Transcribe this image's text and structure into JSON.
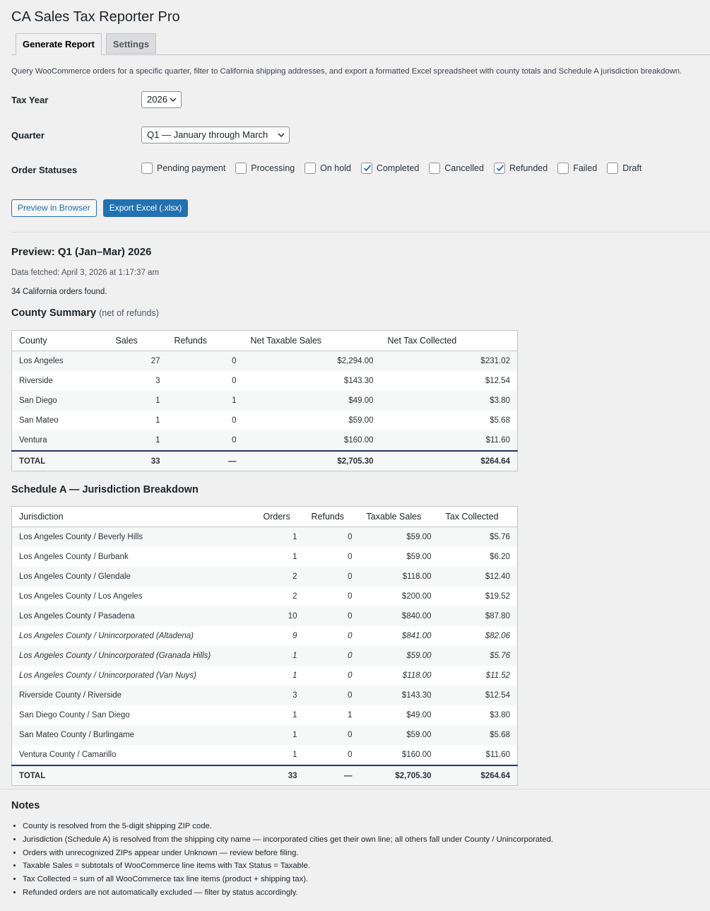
{
  "header": {
    "title": "CA Sales Tax Reporter Pro"
  },
  "tabs": [
    {
      "label": "Generate Report",
      "active": true
    },
    {
      "label": "Settings",
      "active": false
    }
  ],
  "description": "Query WooCommerce orders for a specific quarter, filter to California shipping addresses, and export a formatted Excel spreadsheet with county totals and Schedule A jurisdiction breakdown.",
  "form": {
    "tax_year": {
      "label": "Tax Year",
      "value": "2026"
    },
    "quarter": {
      "label": "Quarter",
      "value": "Q1 — January through March"
    },
    "order_statuses": {
      "label": "Order Statuses",
      "options": [
        {
          "label": "Pending payment",
          "checked": false
        },
        {
          "label": "Processing",
          "checked": false
        },
        {
          "label": "On hold",
          "checked": false
        },
        {
          "label": "Completed",
          "checked": true
        },
        {
          "label": "Cancelled",
          "checked": false
        },
        {
          "label": "Refunded",
          "checked": true
        },
        {
          "label": "Failed",
          "checked": false
        },
        {
          "label": "Draft",
          "checked": false
        }
      ]
    }
  },
  "buttons": [
    {
      "label": "Preview in Browser",
      "primary": false
    },
    {
      "label": "Export Excel (.xlsx)",
      "primary": true
    }
  ],
  "preview": {
    "heading": "Preview: Q1 (Jan–Mar) 2026",
    "fetched": "Data fetched: April 3, 2026 at 1:17:37 am",
    "count": "34 California orders found."
  },
  "county_summary": {
    "title": "County Summary",
    "note": "(net of refunds)",
    "columns": [
      "County",
      "Sales",
      "Refunds",
      "Net Taxable Sales",
      "Net Tax Collected"
    ],
    "rows": [
      [
        "Los Angeles",
        "27",
        "0",
        "$2,294.00",
        "$231.02"
      ],
      [
        "Riverside",
        "3",
        "0",
        "$143.30",
        "$12.54"
      ],
      [
        "San Diego",
        "1",
        "1",
        "$49.00",
        "$3.80"
      ],
      [
        "San Mateo",
        "1",
        "0",
        "$59.00",
        "$5.68"
      ],
      [
        "Ventura",
        "1",
        "0",
        "$160.00",
        "$11.60"
      ]
    ],
    "total": [
      "TOTAL",
      "33",
      "—",
      "$2,705.30",
      "$264.64"
    ]
  },
  "schedule_a": {
    "title": "Schedule A — Jurisdiction Breakdown",
    "columns": [
      "Jurisdiction",
      "Orders",
      "Refunds",
      "Taxable Sales",
      "Tax Collected"
    ],
    "rows": [
      {
        "cells": [
          "Los Angeles County / Beverly Hills",
          "1",
          "0",
          "$59.00",
          "$5.76"
        ],
        "italic": false
      },
      {
        "cells": [
          "Los Angeles County / Burbank",
          "1",
          "0",
          "$59.00",
          "$6.20"
        ],
        "italic": false
      },
      {
        "cells": [
          "Los Angeles County / Glendale",
          "2",
          "0",
          "$118.00",
          "$12.40"
        ],
        "italic": false
      },
      {
        "cells": [
          "Los Angeles County / Los Angeles",
          "2",
          "0",
          "$200.00",
          "$19.52"
        ],
        "italic": false
      },
      {
        "cells": [
          "Los Angeles County / Pasadena",
          "10",
          "0",
          "$840.00",
          "$87.80"
        ],
        "italic": false
      },
      {
        "cells": [
          "Los Angeles County / Unincorporated (Altadena)",
          "9",
          "0",
          "$841.00",
          "$82.06"
        ],
        "italic": true
      },
      {
        "cells": [
          "Los Angeles County / Unincorporated (Granada Hills)",
          "1",
          "0",
          "$59.00",
          "$5.76"
        ],
        "italic": true
      },
      {
        "cells": [
          "Los Angeles County / Unincorporated (Van Nuys)",
          "1",
          "0",
          "$118.00",
          "$11.52"
        ],
        "italic": true
      },
      {
        "cells": [
          "Riverside County / Riverside",
          "3",
          "0",
          "$143.30",
          "$12.54"
        ],
        "italic": false
      },
      {
        "cells": [
          "San Diego County / San Diego",
          "1",
          "1",
          "$49.00",
          "$3.80"
        ],
        "italic": false
      },
      {
        "cells": [
          "San Mateo County / Burlingame",
          "1",
          "0",
          "$59.00",
          "$5.68"
        ],
        "italic": false
      },
      {
        "cells": [
          "Ventura County / Camarillo",
          "1",
          "0",
          "$160.00",
          "$11.60"
        ],
        "italic": false
      }
    ],
    "total": [
      "TOTAL",
      "33",
      "—",
      "$2,705.30",
      "$264.64"
    ]
  },
  "notes": {
    "title": "Notes",
    "items": [
      "County is resolved from the 5-digit shipping ZIP code.",
      "Jurisdiction (Schedule A) is resolved from the shipping city name — incorporated cities get their own line; all others fall under County / Unincorporated.",
      "Orders with unrecognized ZIPs appear under Unknown — review before filing.",
      "Taxable Sales = subtotals of WooCommerce line items with Tax Status = Taxable.",
      "Tax Collected = sum of all WooCommerce tax line items (product + shipping tax).",
      "Refunded orders are not automatically excluded — filter by status accordingly."
    ]
  }
}
